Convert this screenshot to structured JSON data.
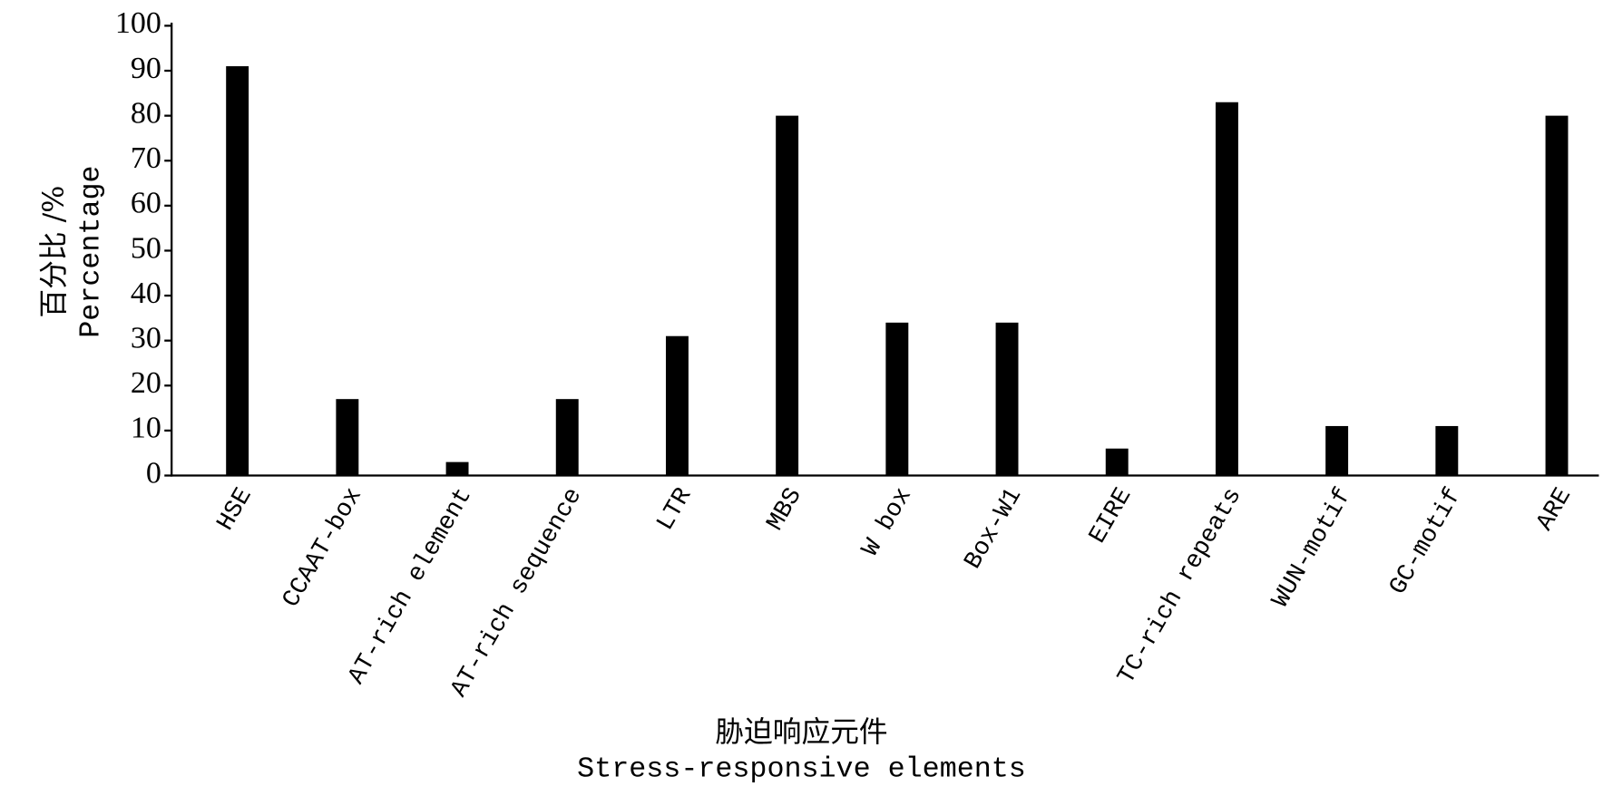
{
  "chart_data": {
    "type": "bar",
    "ylabel": [
      "百分比 /%",
      "Percentage"
    ],
    "xlabel": [
      "胁迫响应元件",
      "Stress-responsive elements"
    ],
    "categories": [
      "HSE",
      "CCAAT-box",
      "AT-rich element",
      "AT-rich sequence",
      "LTR",
      "MBS",
      "W box",
      "Box-W1",
      "EIRE",
      "TC-rich repeats",
      "WUN-motif",
      "GC-motif",
      "ARE"
    ],
    "values": [
      91,
      17,
      3,
      17,
      31,
      80,
      34,
      34,
      6,
      83,
      11,
      11,
      80
    ],
    "color": "#000000",
    "ylim": [
      0,
      100
    ],
    "yticks": [
      0,
      10,
      20,
      30,
      40,
      50,
      60,
      70,
      80,
      90,
      100
    ],
    "grid": false
  }
}
